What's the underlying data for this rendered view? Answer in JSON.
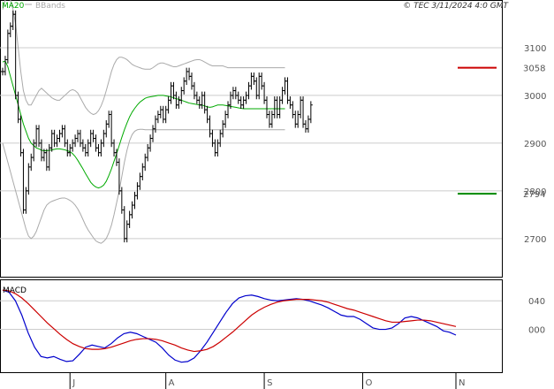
{
  "header": {
    "ma_label": "MA20",
    "bb_label": "BBands",
    "source": "© TEC 3/11/2024 4:0 GMT"
  },
  "colors": {
    "price": "#000000",
    "ma20": "#00aa00",
    "bbands": "#aaaaaa",
    "macd": "#0000cc",
    "signal": "#cc0000",
    "resistance": "#cc0000",
    "support": "#008800",
    "grid": "#cccccc"
  },
  "chart_data": [
    {
      "type": "ohlc",
      "title": "",
      "y_ticks": [
        "3100",
        "3000",
        "2900",
        "2800",
        "2700"
      ],
      "ylim": [
        2620,
        3200
      ],
      "x_ticks": [
        "J",
        "A",
        "S",
        "O",
        "N"
      ],
      "x_tick_positions": [
        26,
        63,
        101,
        139,
        175
      ],
      "n_bars": 176,
      "levels": [
        {
          "name": "resistance",
          "value": 3058,
          "label": "3058"
        },
        {
          "name": "support",
          "value": 2794,
          "label": "2794"
        }
      ],
      "close": [
        3050,
        3075,
        3130,
        3145,
        3170,
        3000,
        2950,
        2880,
        2760,
        2800,
        2850,
        2870,
        2900,
        2930,
        2900,
        2870,
        2880,
        2850,
        2890,
        2920,
        2900,
        2910,
        2920,
        2930,
        2900,
        2880,
        2890,
        2900,
        2910,
        2920,
        2900,
        2890,
        2880,
        2900,
        2920,
        2910,
        2890,
        2880,
        2900,
        2920,
        2940,
        2960,
        2900,
        2880,
        2860,
        2800,
        2760,
        2700,
        2730,
        2750,
        2770,
        2790,
        2810,
        2830,
        2850,
        2870,
        2890,
        2910,
        2930,
        2950,
        2960,
        2970,
        2950,
        2970,
        2990,
        3020,
        3000,
        2980,
        2990,
        3010,
        3030,
        3050,
        3040,
        3020,
        3000,
        2990,
        2980,
        3000,
        2970,
        2950,
        2920,
        2900,
        2880,
        2900,
        2920,
        2940,
        2960,
        2980,
        3000,
        3010,
        3000,
        2990,
        2980,
        2990,
        3000,
        3020,
        3040,
        3030,
        3000,
        3040,
        3020,
        2990,
        2960,
        2940,
        2960,
        2990,
        2960,
        2990,
        3010,
        3030,
        2990,
        2980,
        2960,
        2940,
        2960,
        2990,
        2940,
        2930,
        2950,
        2980
      ],
      "ma20": [
        3070,
        3072,
        3060,
        3040,
        3020,
        3000,
        2980,
        2960,
        2940,
        2925,
        2910,
        2900,
        2895,
        2890,
        2888,
        2885,
        2884,
        2884,
        2885,
        2886,
        2887,
        2888,
        2888,
        2887,
        2886,
        2884,
        2882,
        2878,
        2872,
        2864,
        2855,
        2846,
        2836,
        2827,
        2818,
        2812,
        2808,
        2806,
        2808,
        2812,
        2820,
        2832,
        2846,
        2862,
        2878,
        2895,
        2912,
        2928,
        2942,
        2955,
        2965,
        2973,
        2980,
        2986,
        2990,
        2994,
        2996,
        2997,
        2998,
        2999,
        3000,
        3000,
        3000,
        2999,
        2998,
        2997,
        2995,
        2993,
        2992,
        2990,
        2988,
        2986,
        2984,
        2983,
        2982,
        2981,
        2980,
        2980,
        2978,
        2976,
        2975,
        2976,
        2978,
        2980,
        2980,
        2980,
        2979,
        2978,
        2977,
        2976,
        2975,
        2974,
        2973,
        2972,
        2972,
        2972,
        2972,
        2972,
        2972,
        2972,
        2972,
        2972,
        2972,
        2972,
        2972,
        2972,
        2972,
        2972,
        2972,
        2972
      ],
      "bb_upper": [
        3180,
        3200,
        3210,
        3200,
        3180,
        3150,
        3100,
        3050,
        3010,
        2990,
        2980,
        2980,
        2990,
        3000,
        3010,
        3015,
        3010,
        3005,
        3000,
        2995,
        2992,
        2990,
        2990,
        2995,
        3000,
        3005,
        3010,
        3012,
        3010,
        3005,
        2995,
        2985,
        2975,
        2968,
        2963,
        2960,
        2962,
        2968,
        2978,
        2992,
        3010,
        3030,
        3050,
        3065,
        3075,
        3080,
        3080,
        3078,
        3075,
        3070,
        3065,
        3062,
        3060,
        3058,
        3056,
        3055,
        3055,
        3055,
        3058,
        3062,
        3066,
        3068,
        3068,
        3066,
        3064,
        3062,
        3060,
        3060,
        3062,
        3064,
        3066,
        3068,
        3070,
        3072,
        3074,
        3075,
        3075,
        3073,
        3070,
        3067,
        3064,
        3062,
        3062,
        3062,
        3062,
        3062,
        3060,
        3058,
        3058,
        3058,
        3058,
        3058,
        3058,
        3058,
        3058,
        3058,
        3058,
        3058,
        3058,
        3058,
        3058,
        3058,
        3058,
        3058,
        3058,
        3058,
        3058,
        3058,
        3058,
        3058
      ],
      "bb_lower": [
        2900,
        2880,
        2860,
        2840,
        2820,
        2800,
        2780,
        2760,
        2740,
        2720,
        2705,
        2700,
        2705,
        2715,
        2730,
        2745,
        2760,
        2770,
        2775,
        2778,
        2780,
        2782,
        2784,
        2785,
        2785,
        2783,
        2780,
        2776,
        2770,
        2762,
        2752,
        2740,
        2728,
        2718,
        2710,
        2702,
        2695,
        2692,
        2690,
        2694,
        2700,
        2712,
        2728,
        2750,
        2775,
        2800,
        2830,
        2860,
        2885,
        2905,
        2918,
        2925,
        2928,
        2929,
        2929,
        2928,
        2928,
        2928,
        2928,
        2928,
        2928,
        2928,
        2928,
        2928,
        2928,
        2928,
        2928,
        2928,
        2928,
        2928,
        2928,
        2928,
        2928,
        2928,
        2928,
        2928,
        2928,
        2928,
        2928,
        2928,
        2928,
        2928,
        2928,
        2928,
        2928,
        2928,
        2928,
        2928,
        2928,
        2928,
        2928,
        2928,
        2928,
        2928,
        2928,
        2928,
        2928,
        2928,
        2928,
        2928,
        2928,
        2928,
        2928,
        2928,
        2928,
        2928,
        2928,
        2928,
        2928,
        2928
      ]
    },
    {
      "type": "line",
      "title": "MACD",
      "y_ticks": [
        "040",
        "000"
      ],
      "ylim": [
        -60,
        70
      ],
      "series": [
        {
          "name": "macd",
          "values": [
            55,
            52,
            40,
            20,
            -5,
            -25,
            -38,
            -40,
            -38,
            -42,
            -45,
            -44,
            -35,
            -25,
            -22,
            -24,
            -26,
            -20,
            -12,
            -6,
            -4,
            -6,
            -10,
            -14,
            -18,
            -26,
            -36,
            -43,
            -46,
            -45,
            -40,
            -30,
            -18,
            -4,
            10,
            24,
            36,
            44,
            47,
            48,
            46,
            43,
            41,
            40,
            41,
            42,
            43,
            42,
            40,
            37,
            34,
            30,
            25,
            20,
            18,
            18,
            14,
            8,
            2,
            0,
            0,
            2,
            8,
            16,
            18,
            16,
            12,
            8,
            4,
            -2,
            -4,
            -8
          ]
        },
        {
          "name": "signal",
          "values": [
            55,
            54,
            50,
            44,
            36,
            27,
            18,
            9,
            1,
            -7,
            -14,
            -20,
            -24,
            -27,
            -28,
            -28,
            -27,
            -25,
            -22,
            -19,
            -16,
            -14,
            -13,
            -13,
            -14,
            -16,
            -19,
            -22,
            -26,
            -29,
            -31,
            -30,
            -28,
            -24,
            -18,
            -11,
            -4,
            4,
            12,
            20,
            26,
            31,
            35,
            38,
            40,
            41,
            42,
            42,
            42,
            41,
            40,
            38,
            35,
            32,
            29,
            27,
            24,
            21,
            18,
            15,
            12,
            10,
            10,
            11,
            12,
            13,
            13,
            12,
            10,
            8,
            6,
            4
          ]
        }
      ]
    }
  ]
}
